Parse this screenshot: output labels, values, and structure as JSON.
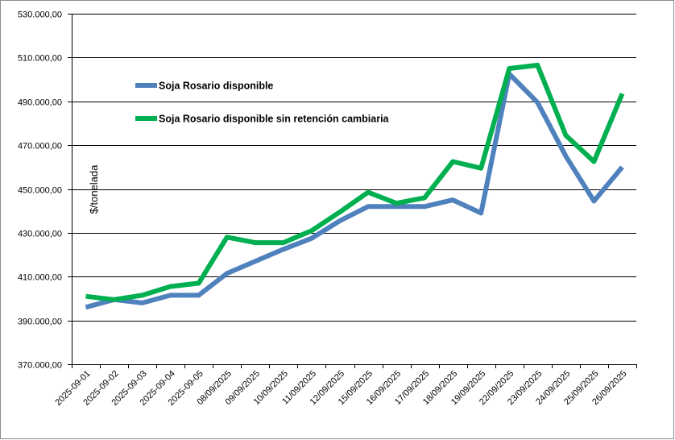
{
  "chart_data": {
    "type": "line",
    "title": "",
    "xlabel": "",
    "ylabel": "$/tonelada",
    "ylim": [
      370000,
      530000
    ],
    "y_ticks": [
      370000,
      390000,
      410000,
      430000,
      450000,
      470000,
      490000,
      510000,
      530000
    ],
    "y_tick_labels": [
      "370.000,00",
      "390.000,00",
      "410.000,00",
      "430.000,00",
      "450.000,00",
      "470.000,00",
      "490.000,00",
      "510.000,00",
      "530.000,00"
    ],
    "grid": true,
    "legend_position": "upper-left-inside",
    "categories": [
      "2025-09-01",
      "2025-09-02",
      "2025-09-03",
      "2025-09-04",
      "2025-09-05",
      "08/09/2025",
      "09/09/2025",
      "10/09/2025",
      "11/09/2025",
      "12/09/2025",
      "15/09/2025",
      "16/09/2025",
      "17/09/2025",
      "18/09/2025",
      "19/09/2025",
      "22/09/2025",
      "23/09/2025",
      "24/09/2025",
      "25/09/2025",
      "26/09/2025"
    ],
    "series": [
      {
        "name": "Soja Rosario disponible",
        "color": "#4f81bd",
        "values": [
          396000,
          399500,
          398000,
          401500,
          401500,
          411500,
          417000,
          422500,
          427500,
          435500,
          442000,
          442000,
          442000,
          445000,
          439000,
          502500,
          489500,
          465000,
          444500,
          460000
        ]
      },
      {
        "name": "Soja Rosario disponible sin retención cambiaria",
        "color": "#00b050",
        "values": [
          401000,
          399500,
          401500,
          405500,
          407000,
          428000,
          425500,
          425500,
          431000,
          439500,
          448500,
          443500,
          446000,
          462500,
          459500,
          505000,
          506500,
          474500,
          462500,
          493500
        ]
      }
    ]
  }
}
